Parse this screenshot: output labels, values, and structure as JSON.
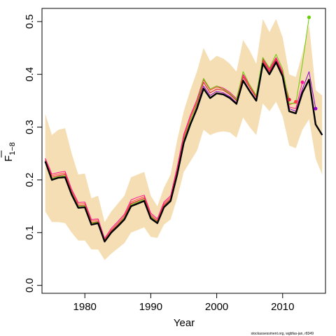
{
  "chart_data": {
    "type": "line",
    "xlabel": "Year",
    "ylabel": "F",
    "ylabel_subscript": "1−8",
    "xlim": [
      1973.5,
      2016.5
    ],
    "ylim": [
      -0.015,
      0.525
    ],
    "x_ticks": [
      1980,
      1990,
      2000,
      2010
    ],
    "y_ticks": [
      0.0,
      0.1,
      0.2,
      0.3,
      0.4,
      0.5
    ],
    "y_tick_labels": [
      "0.0",
      "0.1",
      "0.2",
      "0.3",
      "0.4",
      "0.5"
    ],
    "grid": false,
    "legend": "none",
    "footnote": "stockassessment.org, wgbfas-jan, r8349",
    "confidence_band": {
      "color": "#f5deb3",
      "x": [
        1974,
        1975,
        1976,
        1977,
        1978,
        1979,
        1980,
        1981,
        1982,
        1983,
        1984,
        1985,
        1986,
        1987,
        1988,
        1989,
        1990,
        1991,
        1992,
        1993,
        1994,
        1995,
        1996,
        1997,
        1998,
        1999,
        2000,
        2001,
        2002,
        2003,
        2004,
        2005,
        2006,
        2007,
        2008,
        2009,
        2010,
        2011,
        2012,
        2013,
        2014,
        2015,
        2016
      ],
      "lower": [
        0.14,
        0.12,
        0.12,
        0.118,
        0.1,
        0.085,
        0.085,
        0.068,
        0.068,
        0.048,
        0.06,
        0.07,
        0.08,
        0.1,
        0.105,
        0.11,
        0.092,
        0.09,
        0.115,
        0.125,
        0.165,
        0.215,
        0.235,
        0.255,
        0.295,
        0.285,
        0.29,
        0.292,
        0.29,
        0.28,
        0.318,
        0.3,
        0.285,
        0.345,
        0.33,
        0.348,
        0.32,
        0.265,
        0.26,
        0.295,
        0.315,
        0.24,
        0.21
      ],
      "upper": [
        0.325,
        0.285,
        0.295,
        0.298,
        0.25,
        0.21,
        0.212,
        0.165,
        0.17,
        0.12,
        0.14,
        0.155,
        0.17,
        0.205,
        0.21,
        0.215,
        0.17,
        0.15,
        0.185,
        0.21,
        0.275,
        0.33,
        0.37,
        0.405,
        0.45,
        0.425,
        0.435,
        0.43,
        0.42,
        0.405,
        0.465,
        0.445,
        0.42,
        0.505,
        0.48,
        0.505,
        0.47,
        0.4,
        0.395,
        0.44,
        0.495,
        0.37,
        0.36
      ]
    },
    "series": [
      {
        "color": "#000000",
        "width": 2.4,
        "x": [
          1974,
          1975,
          1976,
          1977,
          1978,
          1979,
          1980,
          1981,
          1982,
          1983,
          1984,
          1985,
          1986,
          1987,
          1988,
          1989,
          1990,
          1991,
          1992,
          1993,
          1994,
          1995,
          1996,
          1997,
          1998,
          1999,
          2000,
          2001,
          2002,
          2003,
          2004,
          2005,
          2006,
          2007,
          2008,
          2009,
          2010,
          2011,
          2012,
          2013,
          2014,
          2015,
          2016
        ],
        "values": [
          0.235,
          0.2,
          0.204,
          0.205,
          0.172,
          0.147,
          0.148,
          0.115,
          0.118,
          0.083,
          0.1,
          0.112,
          0.125,
          0.15,
          0.155,
          0.16,
          0.127,
          0.118,
          0.148,
          0.16,
          0.21,
          0.27,
          0.305,
          0.335,
          0.373,
          0.355,
          0.364,
          0.362,
          0.355,
          0.344,
          0.388,
          0.368,
          0.35,
          0.42,
          0.4,
          0.423,
          0.396,
          0.33,
          0.326,
          0.365,
          0.39,
          0.305,
          0.285
        ]
      },
      {
        "color": "#dc143c",
        "width": 1,
        "end_marker": true,
        "x": [
          1974,
          1975,
          1976,
          1977,
          1978,
          1979,
          1980,
          1981,
          1982,
          1983,
          1984,
          1985,
          1986,
          1987,
          1988,
          1989,
          1990,
          1991,
          1992,
          1993,
          1994,
          1995,
          1996,
          1997,
          1998,
          1999,
          2000,
          2001,
          2002,
          2003,
          2004,
          2005,
          2006,
          2007,
          2008,
          2009,
          2010,
          2011
        ],
        "values": [
          0.237,
          0.205,
          0.208,
          0.21,
          0.176,
          0.151,
          0.152,
          0.119,
          0.121,
          0.085,
          0.103,
          0.115,
          0.129,
          0.155,
          0.16,
          0.165,
          0.131,
          0.121,
          0.152,
          0.164,
          0.216,
          0.277,
          0.313,
          0.343,
          0.385,
          0.365,
          0.372,
          0.37,
          0.362,
          0.35,
          0.395,
          0.375,
          0.356,
          0.425,
          0.405,
          0.428,
          0.4,
          0.352
        ]
      },
      {
        "color": "#ff3f3f",
        "width": 1,
        "end_marker": true,
        "x": [
          1974,
          1975,
          1976,
          1977,
          1978,
          1979,
          1980,
          1981,
          1982,
          1983,
          1984,
          1985,
          1986,
          1987,
          1988,
          1989,
          1990,
          1991,
          1992,
          1993,
          1994,
          1995,
          1996,
          1997,
          1998,
          1999,
          2000,
          2001,
          2002,
          2003,
          2004,
          2005,
          2006,
          2007,
          2008,
          2009,
          2010,
          2011,
          2012
        ],
        "values": [
          0.239,
          0.208,
          0.211,
          0.213,
          0.179,
          0.154,
          0.155,
          0.122,
          0.124,
          0.087,
          0.105,
          0.118,
          0.132,
          0.158,
          0.163,
          0.168,
          0.134,
          0.123,
          0.155,
          0.167,
          0.22,
          0.282,
          0.318,
          0.348,
          0.39,
          0.37,
          0.376,
          0.372,
          0.364,
          0.352,
          0.398,
          0.378,
          0.358,
          0.428,
          0.407,
          0.43,
          0.403,
          0.342,
          0.348
        ]
      },
      {
        "color": "#ff1493",
        "width": 1,
        "end_marker": true,
        "x": [
          1974,
          1975,
          1976,
          1977,
          1978,
          1979,
          1980,
          1981,
          1982,
          1983,
          1984,
          1985,
          1986,
          1987,
          1988,
          1989,
          1990,
          1991,
          1992,
          1993,
          1994,
          1995,
          1996,
          1997,
          1998,
          1999,
          2000,
          2001,
          2002,
          2003,
          2004,
          2005,
          2006,
          2007,
          2008,
          2009,
          2010,
          2011,
          2012,
          2013
        ],
        "values": [
          0.241,
          0.211,
          0.214,
          0.216,
          0.182,
          0.157,
          0.158,
          0.125,
          0.126,
          0.089,
          0.108,
          0.121,
          0.135,
          0.162,
          0.167,
          0.171,
          0.137,
          0.126,
          0.158,
          0.17,
          0.224,
          0.286,
          0.322,
          0.352,
          0.392,
          0.372,
          0.378,
          0.374,
          0.366,
          0.354,
          0.4,
          0.38,
          0.36,
          0.43,
          0.41,
          0.432,
          0.405,
          0.338,
          0.335,
          0.385
        ]
      },
      {
        "color": "#66cd00",
        "width": 1,
        "end_marker": true,
        "x": [
          1974,
          1975,
          1976,
          1977,
          1978,
          1979,
          1980,
          1981,
          1982,
          1983,
          1984,
          1985,
          1986,
          1987,
          1988,
          1989,
          1990,
          1991,
          1992,
          1993,
          1994,
          1995,
          1996,
          1997,
          1998,
          1999,
          2000,
          2001,
          2002,
          2003,
          2004,
          2005,
          2006,
          2007,
          2008,
          2009,
          2010,
          2011,
          2012,
          2013,
          2014
        ],
        "values": [
          0.236,
          0.203,
          0.206,
          0.208,
          0.175,
          0.15,
          0.151,
          0.118,
          0.12,
          0.085,
          0.102,
          0.114,
          0.128,
          0.153,
          0.158,
          0.163,
          0.13,
          0.12,
          0.15,
          0.162,
          0.213,
          0.275,
          0.312,
          0.345,
          0.392,
          0.372,
          0.378,
          0.372,
          0.364,
          0.352,
          0.405,
          0.38,
          0.36,
          0.432,
          0.412,
          0.438,
          0.41,
          0.345,
          0.345,
          0.42,
          0.508
        ]
      },
      {
        "color": "#9400d3",
        "width": 1,
        "end_marker": true,
        "x": [
          1974,
          1975,
          1976,
          1977,
          1978,
          1979,
          1980,
          1981,
          1982,
          1983,
          1984,
          1985,
          1986,
          1987,
          1988,
          1989,
          1990,
          1991,
          1992,
          1993,
          1994,
          1995,
          1996,
          1997,
          1998,
          1999,
          2000,
          2001,
          2002,
          2003,
          2004,
          2005,
          2006,
          2007,
          2008,
          2009,
          2010,
          2011,
          2012,
          2013,
          2014,
          2015
        ],
        "values": [
          0.235,
          0.201,
          0.205,
          0.206,
          0.173,
          0.148,
          0.149,
          0.116,
          0.119,
          0.084,
          0.101,
          0.113,
          0.126,
          0.151,
          0.156,
          0.161,
          0.128,
          0.119,
          0.149,
          0.161,
          0.211,
          0.272,
          0.307,
          0.338,
          0.378,
          0.36,
          0.368,
          0.365,
          0.358,
          0.346,
          0.39,
          0.37,
          0.352,
          0.422,
          0.402,
          0.425,
          0.398,
          0.335,
          0.33,
          0.372,
          0.405,
          0.335
        ]
      }
    ]
  }
}
